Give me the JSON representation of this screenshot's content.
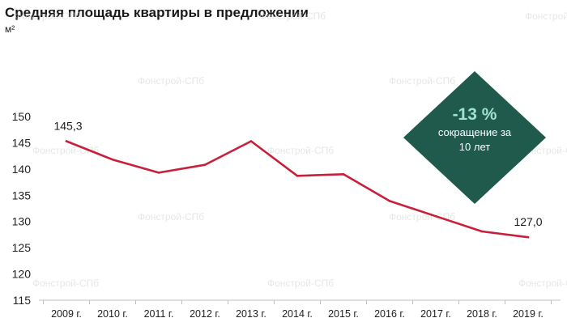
{
  "title": "Средняя площадь квартиры в предложении",
  "unit": "м²",
  "watermark": "Фонстрой-СПб",
  "colors": {
    "line": "#c8203c",
    "badge": "#1f5a4c",
    "badge_pct": "#9fe3cf",
    "axis": "#bfbfbf"
  },
  "badge": {
    "percent": "-13 %",
    "line1": "сокращение за",
    "line2": "10 лет"
  },
  "chart_data": {
    "type": "line",
    "title": "Средняя площадь квартиры в предложении",
    "ylabel": "м²",
    "xlabel": "",
    "categories": [
      "2009 г.",
      "2010 г.",
      "2011 г.",
      "2012 г.",
      "2013 г.",
      "2014 г.",
      "2015 г.",
      "2016 г.",
      "2017 г.",
      "2018 г.",
      "2019 г."
    ],
    "series": [
      {
        "values": [
          145.3,
          141.8,
          139.3,
          140.8,
          145.3,
          138.7,
          139.0,
          133.9,
          131.0,
          128.1,
          127.0
        ]
      }
    ],
    "ylim": [
      115,
      150
    ],
    "yticks": [
      115,
      120,
      125,
      130,
      135,
      140,
      145,
      150
    ],
    "data_labels": [
      {
        "index": 0,
        "text": "145,3"
      },
      {
        "index": 10,
        "text": "127,0"
      }
    ],
    "grid": false,
    "legend": "none"
  }
}
